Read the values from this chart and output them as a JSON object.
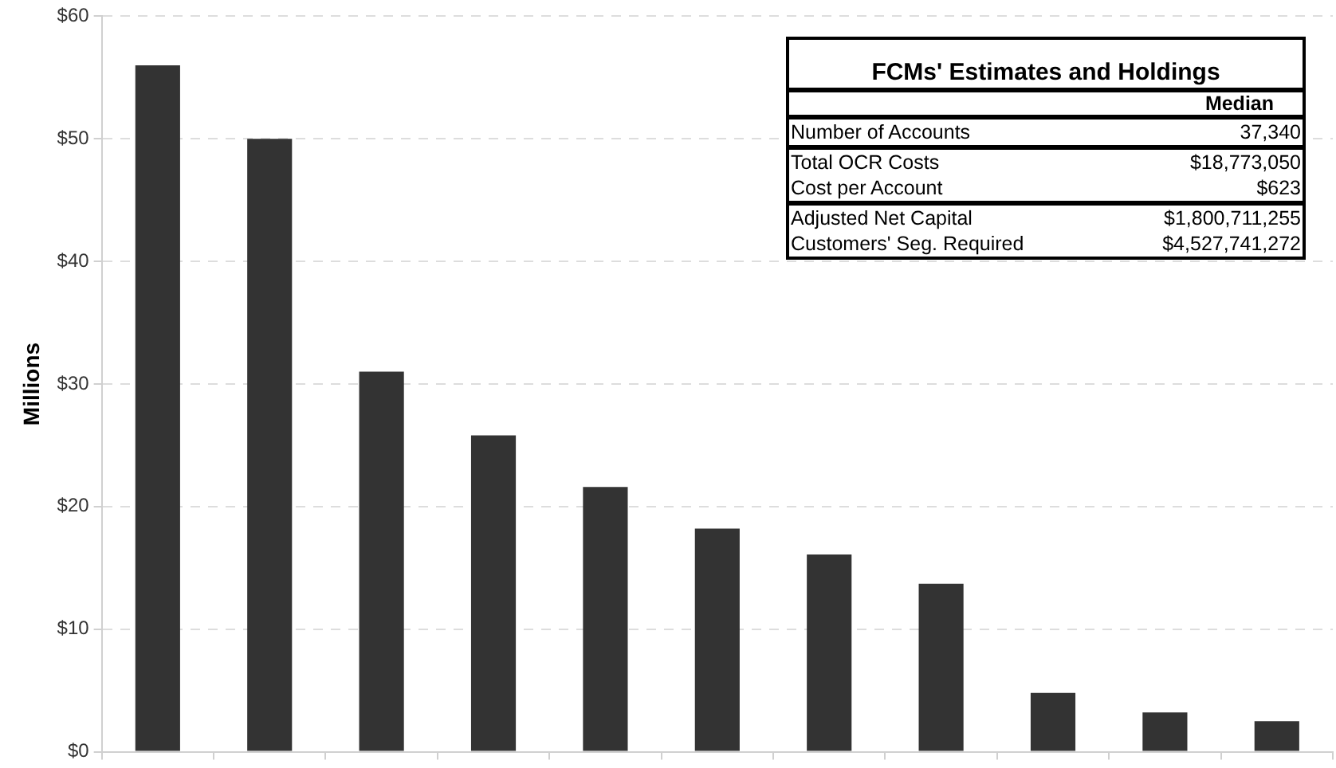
{
  "chart_data": {
    "type": "bar",
    "ylabel": "Millions",
    "categories": [
      null,
      null,
      null,
      null,
      null,
      null,
      null,
      null,
      null,
      null,
      null
    ],
    "values": [
      56,
      50,
      31,
      25.8,
      21.6,
      18.2,
      16.1,
      13.7,
      4.8,
      3.2,
      2.5
    ],
    "color": "#333333",
    "ylim": [
      0,
      60
    ],
    "yticks": [
      {
        "value": 0,
        "label": "$0"
      },
      {
        "value": 10,
        "label": "$10"
      },
      {
        "value": 20,
        "label": "$20"
      },
      {
        "value": 30,
        "label": "$30"
      },
      {
        "value": 40,
        "label": "$40"
      },
      {
        "value": 50,
        "label": "$50"
      },
      {
        "value": 60,
        "label": "$60"
      }
    ],
    "grid": "y",
    "tick_labels": "y",
    "annotations": [
      "FCMs' Estimates and Holdings",
      "Median",
      "Number of Accounts",
      "37,340",
      "Total OCR Costs",
      "$18,773,050",
      "Cost per Account",
      "$623",
      "Adjusted Net Capital",
      "$1,800,711,255",
      "Customers' Seg. Required",
      "$4,527,741,272"
    ]
  }
}
